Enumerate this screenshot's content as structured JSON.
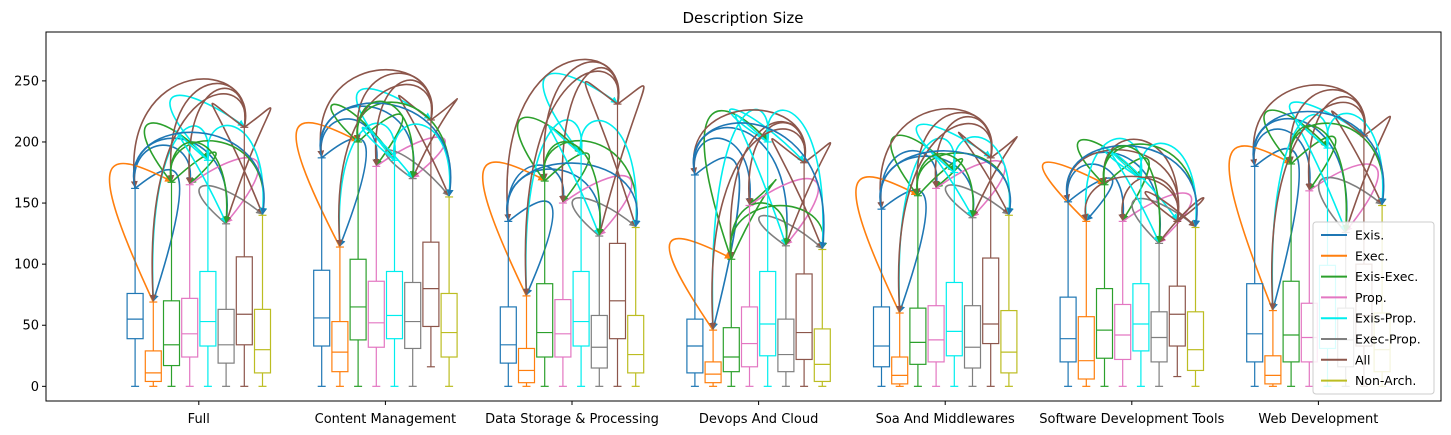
{
  "chart_data": {
    "type": "box",
    "title": "Description Size",
    "xlabel": "",
    "ylabel": "",
    "ylim": [
      -12,
      290
    ],
    "yticks": [
      0,
      50,
      100,
      150,
      200,
      250
    ],
    "categories": [
      "Full",
      "Content Management",
      "Data Storage & Processing",
      "Devops And Cloud",
      "Soa And Middlewares",
      "Software Development Tools",
      "Web Development"
    ],
    "legend_position": "lower-right",
    "series": [
      {
        "name": "Exis.",
        "color": "#1f77b4",
        "boxes": [
          [
            0,
            39,
            55,
            76,
            162
          ],
          [
            0,
            33,
            56,
            95,
            187
          ],
          [
            0,
            19,
            34,
            65,
            135
          ],
          [
            0,
            11,
            33,
            55,
            173
          ],
          [
            0,
            16,
            33,
            65,
            145
          ],
          [
            0,
            20,
            39,
            73,
            151
          ],
          [
            0,
            20,
            43,
            84,
            180
          ]
        ]
      },
      {
        "name": "Exec.",
        "color": "#ff7f0e",
        "boxes": [
          [
            0,
            4,
            11,
            29,
            69
          ],
          [
            0,
            12,
            28,
            53,
            114
          ],
          [
            0,
            3,
            13,
            31,
            74
          ],
          [
            0,
            3,
            10,
            20,
            46
          ],
          [
            0,
            2,
            9,
            24,
            60
          ],
          [
            0,
            6,
            21,
            57,
            135
          ],
          [
            0,
            2,
            9,
            25,
            62
          ]
        ]
      },
      {
        "name": "Exis-Exec.",
        "color": "#2ca02c",
        "boxes": [
          [
            0,
            17,
            34,
            70,
            167
          ],
          [
            0,
            38,
            65,
            104,
            200
          ],
          [
            0,
            24,
            44,
            84,
            168
          ],
          [
            0,
            12,
            24,
            48,
            104
          ],
          [
            0,
            18,
            36,
            64,
            156
          ],
          [
            0,
            23,
            46,
            80,
            165
          ],
          [
            0,
            20,
            42,
            86,
            182
          ]
        ]
      },
      {
        "name": "Prop.",
        "color": "#e377c2",
        "boxes": [
          [
            0,
            24,
            43,
            72,
            165
          ],
          [
            0,
            32,
            52,
            86,
            180
          ],
          [
            0,
            24,
            43,
            71,
            150
          ],
          [
            0,
            16,
            35,
            65,
            148
          ],
          [
            0,
            20,
            38,
            66,
            162
          ],
          [
            0,
            22,
            42,
            67,
            135
          ],
          [
            0,
            20,
            40,
            68,
            160
          ]
        ]
      },
      {
        "name": "Exis-Prop.",
        "color": "#00eeee",
        "boxes": [
          [
            0,
            33,
            53,
            94,
            185
          ],
          [
            0,
            39,
            58,
            94,
            185
          ],
          [
            0,
            33,
            53,
            94,
            190
          ],
          [
            0,
            25,
            51,
            94,
            200
          ],
          [
            0,
            25,
            45,
            85,
            175
          ],
          [
            0,
            29,
            51,
            84,
            170
          ],
          [
            0,
            31,
            56,
            99,
            195
          ]
        ]
      },
      {
        "name": "Exec-Prop.",
        "color": "#7f7f7f",
        "boxes": [
          [
            0,
            19,
            34,
            63,
            133
          ],
          [
            0,
            31,
            53,
            85,
            170
          ],
          [
            0,
            15,
            32,
            58,
            123
          ],
          [
            0,
            12,
            26,
            55,
            115
          ],
          [
            0,
            15,
            32,
            66,
            138
          ],
          [
            0,
            20,
            40,
            61,
            117
          ],
          [
            0,
            16,
            38,
            64,
            126
          ]
        ]
      },
      {
        "name": "All",
        "color": "#8c564b",
        "boxes": [
          [
            0,
            34,
            59,
            106,
            212
          ],
          [
            16,
            49,
            80,
            118,
            218
          ],
          [
            0,
            39,
            70,
            117,
            231
          ],
          [
            0,
            22,
            44,
            92,
            183
          ],
          [
            0,
            35,
            51,
            105,
            187
          ],
          [
            8,
            33,
            59,
            82,
            135
          ],
          [
            0,
            33,
            58,
            100,
            205
          ]
        ]
      },
      {
        "name": "Non-Arch.",
        "color": "#bcbd22",
        "boxes": [
          [
            0,
            11,
            30,
            63,
            140
          ],
          [
            0,
            24,
            44,
            76,
            155
          ],
          [
            0,
            11,
            26,
            58,
            130
          ],
          [
            0,
            4,
            18,
            47,
            112
          ],
          [
            0,
            11,
            28,
            62,
            140
          ],
          [
            0,
            13,
            30,
            61,
            130
          ],
          [
            0,
            12,
            30,
            60,
            148
          ]
        ]
      }
    ]
  }
}
